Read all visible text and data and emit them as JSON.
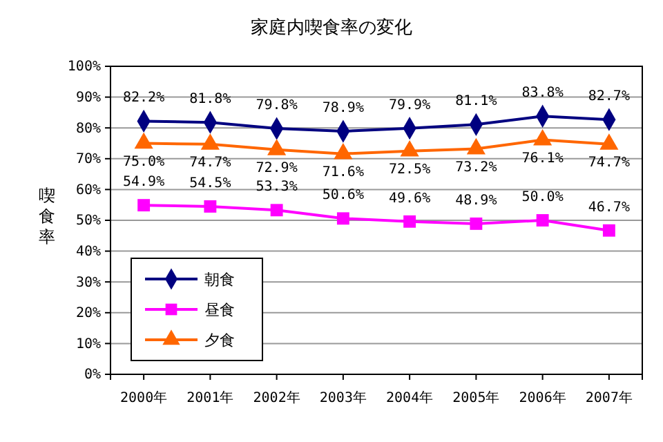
{
  "chart_data": {
    "type": "line",
    "title": "家庭内喫食率の変化",
    "ylabel": "喫食率",
    "categories": [
      "2000年",
      "2001年",
      "2002年",
      "2003年",
      "2004年",
      "2005年",
      "2006年",
      "2007年"
    ],
    "series": [
      {
        "name": "朝食",
        "color": "#000080",
        "marker": "diamond",
        "values": [
          82.2,
          81.8,
          79.8,
          78.9,
          79.9,
          81.1,
          83.8,
          82.7
        ],
        "value_labels": [
          "82.2%",
          "81.8%",
          "79.8%",
          "78.9%",
          "79.9%",
          "81.1%",
          "83.8%",
          "82.7%"
        ]
      },
      {
        "name": "昼食",
        "color": "#ff00ff",
        "marker": "square",
        "values": [
          54.9,
          54.5,
          53.3,
          50.6,
          49.6,
          48.9,
          50.0,
          46.7
        ],
        "value_labels": [
          "54.9%",
          "54.5%",
          "53.3%",
          "50.6%",
          "49.6%",
          "48.9%",
          "50.0%",
          "46.7%"
        ]
      },
      {
        "name": "夕食",
        "color": "#ff6600",
        "marker": "triangle",
        "values": [
          75.0,
          74.7,
          72.9,
          71.6,
          72.5,
          73.2,
          76.1,
          74.7
        ],
        "value_labels": [
          "75.0%",
          "74.7%",
          "72.9%",
          "71.6%",
          "72.5%",
          "73.2%",
          "76.1%",
          "74.7%"
        ]
      }
    ],
    "ylim": [
      0,
      100
    ],
    "yticks": [
      {
        "value": 0,
        "label": "0%"
      },
      {
        "value": 10,
        "label": "10%"
      },
      {
        "value": 20,
        "label": "20%"
      },
      {
        "value": 30,
        "label": "30%"
      },
      {
        "value": 40,
        "label": "40%"
      },
      {
        "value": 50,
        "label": "50%"
      },
      {
        "value": 60,
        "label": "60%"
      },
      {
        "value": 70,
        "label": "70%"
      },
      {
        "value": 80,
        "label": "80%"
      },
      {
        "value": 90,
        "label": "90%"
      },
      {
        "value": 100,
        "label": "100%"
      }
    ],
    "grid": "y",
    "legend": "bottom left",
    "line_style": "solid"
  }
}
